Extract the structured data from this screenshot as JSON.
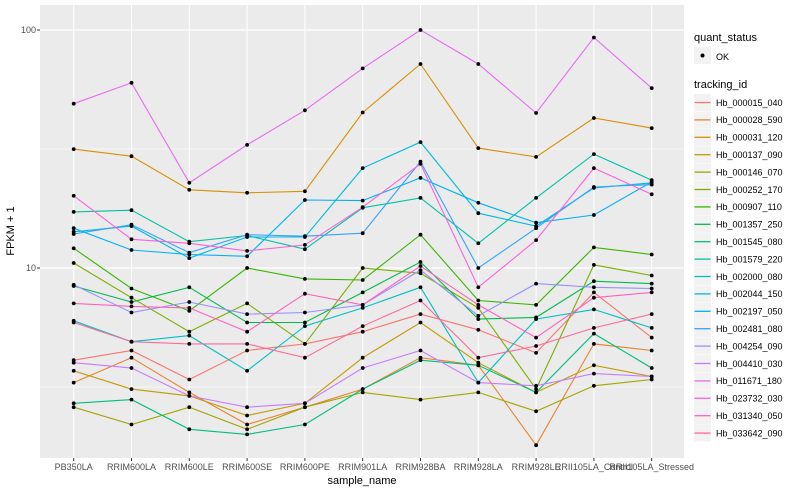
{
  "figure": {
    "background": "#FFFFFF",
    "panel_background": "#EBEBEB",
    "grid_color": "#FFFFFF",
    "axis_text_color": "#4D4D4D",
    "axis_title_color": "#000000",
    "tick_mark_color": "#333333",
    "point_color": "#000000",
    "legend_key_fill": "#F2F2F2"
  },
  "axes": {
    "y_title": "FPKM + 1",
    "x_title": "sample_name",
    "y_scale": "log10",
    "y_ticks": [
      {
        "label": "100",
        "value": 100
      },
      {
        "label": "10",
        "value": 10
      }
    ],
    "y_minor_breaks": [
      31.62,
      3.162
    ]
  },
  "legend": {
    "quant_status_title": "quant_status",
    "quant_status_items": [
      {
        "label": "OK"
      }
    ],
    "tracking_id_title": "tracking_id"
  },
  "chart_data": {
    "type": "line",
    "title": "",
    "xlabel": "sample_name",
    "ylabel": "FPKM + 1",
    "legend_position": "right",
    "grid": true,
    "y_axis": {
      "scale": "log10",
      "tick_values": [
        100,
        10
      ],
      "approx_range": [
        1.6,
        128
      ]
    },
    "x_categories": [
      "PB350LA",
      "RRIM600LA",
      "RRIM600LE",
      "RRIM600SE",
      "RRIM600PE",
      "RRIM901LA",
      "RRIM928BA",
      "RRIM928LA",
      "RRIM928LE",
      "RRII105LA_Control",
      "RRII105LA_Stressed"
    ],
    "quant_status": "OK",
    "series": [
      {
        "name": "Hb_000015_040",
        "color": "#F8766D",
        "values": [
          4.1,
          4.5,
          3.4,
          4.5,
          4.8,
          5.4,
          6.4,
          5.5,
          4.4,
          7.9,
          5.1
        ]
      },
      {
        "name": "Hb_000028_590",
        "color": "#EA8331",
        "values": [
          3.3,
          4.2,
          3.0,
          2.2,
          2.6,
          3.1,
          4.2,
          3.9,
          1.8,
          4.8,
          4.5
        ]
      },
      {
        "name": "Hb_000031_120",
        "color": "#D89000",
        "values": [
          31.6,
          29.5,
          21.3,
          20.7,
          21.0,
          45.0,
          72.0,
          31.9,
          29.3,
          42.7,
          38.7
        ]
      },
      {
        "name": "Hb_000137_090",
        "color": "#C09B00",
        "values": [
          3.7,
          3.1,
          2.9,
          2.4,
          2.7,
          4.2,
          5.9,
          4.0,
          3.0,
          3.9,
          3.5
        ]
      },
      {
        "name": "Hb_000146_070",
        "color": "#A3A500",
        "values": [
          2.6,
          2.2,
          2.6,
          2.1,
          2.6,
          3.0,
          2.8,
          3.0,
          2.5,
          3.2,
          3.4
        ]
      },
      {
        "name": "Hb_000252_170",
        "color": "#7CAE00",
        "values": [
          10.5,
          7.5,
          5.4,
          7.1,
          4.8,
          10.0,
          9.5,
          6.8,
          3.1,
          10.3,
          9.3
        ]
      },
      {
        "name": "Hb_000907_110",
        "color": "#39B600",
        "values": [
          12.1,
          8.2,
          6.6,
          10.0,
          9.0,
          8.9,
          13.8,
          7.3,
          7.0,
          12.2,
          11.4
        ]
      },
      {
        "name": "Hb_001357_250",
        "color": "#00BB4E",
        "values": [
          8.4,
          7.2,
          8.3,
          5.9,
          5.9,
          7.9,
          10.6,
          6.1,
          6.2,
          8.8,
          8.6
        ]
      },
      {
        "name": "Hb_001545_080",
        "color": "#00BF7D",
        "values": [
          2.7,
          2.8,
          2.1,
          2.0,
          2.2,
          3.1,
          4.1,
          3.9,
          3.0,
          5.3,
          3.8
        ]
      },
      {
        "name": "Hb_001579_220",
        "color": "#00C1A3",
        "values": [
          17.2,
          17.5,
          12.9,
          13.7,
          12.0,
          17.9,
          19.7,
          12.7,
          19.7,
          30.1,
          23.4
        ]
      },
      {
        "name": "Hb_002000_080",
        "color": "#00BFC4",
        "values": [
          6.0,
          4.9,
          5.2,
          3.7,
          5.7,
          6.8,
          8.3,
          3.3,
          6.1,
          6.7,
          5.6
        ]
      },
      {
        "name": "Hb_002044_150",
        "color": "#00BADE",
        "values": [
          14.2,
          15.0,
          11.0,
          13.5,
          13.5,
          26.3,
          33.8,
          17.0,
          15.0,
          21.7,
          22.8
        ]
      },
      {
        "name": "Hb_002197_050",
        "color": "#00B0F6",
        "values": [
          14.7,
          11.9,
          11.4,
          11.2,
          19.3,
          19.2,
          23.9,
          18.8,
          15.5,
          16.7,
          23.0
        ]
      },
      {
        "name": "Hb_002481_080",
        "color": "#35A2FF",
        "values": [
          13.9,
          15.2,
          11.6,
          13.8,
          13.6,
          14.0,
          28.0,
          10.0,
          14.7,
          21.9,
          22.4
        ]
      },
      {
        "name": "Hb_004254_090",
        "color": "#9590FF",
        "values": [
          8.5,
          6.5,
          7.2,
          6.4,
          6.5,
          7.0,
          9.8,
          6.3,
          8.6,
          8.3,
          8.2
        ]
      },
      {
        "name": "Hb_004410_030",
        "color": "#C77CFF",
        "values": [
          4.0,
          3.8,
          2.9,
          2.6,
          2.7,
          3.8,
          4.5,
          3.3,
          3.2,
          3.6,
          3.5
        ]
      },
      {
        "name": "Hb_011671_180",
        "color": "#E76BF3",
        "values": [
          49.0,
          60.0,
          22.8,
          32.9,
          46.0,
          69.0,
          100.0,
          72.0,
          44.8,
          93.0,
          57.0
        ]
      },
      {
        "name": "Hb_023732_030",
        "color": "#FA62DB",
        "values": [
          20.1,
          13.2,
          12.7,
          11.8,
          12.5,
          18.0,
          27.4,
          8.3,
          13.1,
          26.3,
          20.4
        ]
      },
      {
        "name": "Hb_031340_050",
        "color": "#FF62BC",
        "values": [
          7.1,
          6.9,
          6.8,
          5.4,
          7.8,
          7.0,
          10.2,
          7.0,
          5.1,
          7.5,
          7.9
        ]
      },
      {
        "name": "Hb_033642_090",
        "color": "#FF6A98",
        "values": [
          5.9,
          4.9,
          4.8,
          4.8,
          4.2,
          5.7,
          7.3,
          4.2,
          4.7,
          5.6,
          6.4
        ]
      }
    ]
  }
}
